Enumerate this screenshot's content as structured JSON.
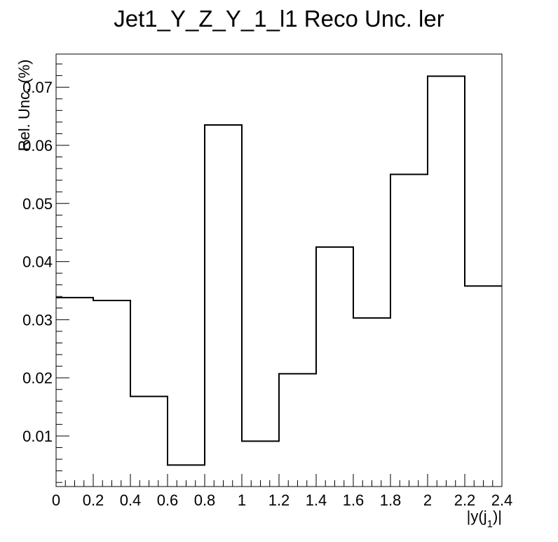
{
  "chart_data": {
    "type": "histogram-step",
    "title": "Jet1_Y_Z_Y_1_l1 Reco Unc. ler",
    "xlabel": "|y(j",
    "xlabel_sub": "1",
    "xlabel_end": ")|",
    "ylabel": "Rel. Unc. (%)",
    "xlim": [
      0,
      2.4
    ],
    "ylim": [
      0.0013,
      0.0757
    ],
    "xticks": [
      "0",
      "0.2",
      "0.4",
      "0.6",
      "0.8",
      "1",
      "1.2",
      "1.4",
      "1.6",
      "1.8",
      "2",
      "2.2",
      "2.4"
    ],
    "yticks": [
      "0.01",
      "0.02",
      "0.03",
      "0.04",
      "0.05",
      "0.06",
      "0.07"
    ],
    "bin_edges": [
      0,
      0.2,
      0.4,
      0.6,
      0.8,
      1.0,
      1.2,
      1.4,
      1.6,
      1.8,
      2.0,
      2.2,
      2.4
    ],
    "values": [
      0.0338,
      0.0333,
      0.0168,
      0.005,
      0.0635,
      0.0091,
      0.0207,
      0.0425,
      0.0303,
      0.055,
      0.0719,
      0.0358
    ],
    "grid": false,
    "line_color": "#000000"
  }
}
